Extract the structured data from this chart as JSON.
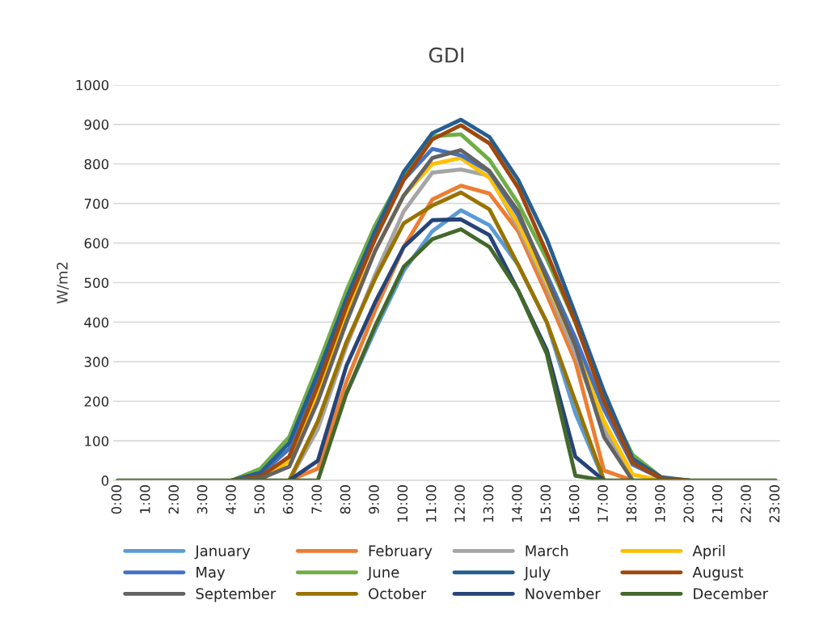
{
  "chart_data": {
    "type": "line",
    "title": "GDI",
    "ylabel": "W/m2",
    "categories": [
      "0:00",
      "1:00",
      "2:00",
      "3:00",
      "4:00",
      "5:00",
      "6:00",
      "7:00",
      "8:00",
      "9:00",
      "10:00",
      "11:00",
      "12:00",
      "13:00",
      "14:00",
      "15:00",
      "16:00",
      "17:00",
      "18:00",
      "19:00",
      "20:00",
      "21:00",
      "22:00",
      "23:00"
    ],
    "ylim": [
      0,
      1000
    ],
    "yticks": [
      0,
      100,
      200,
      300,
      400,
      500,
      600,
      700,
      800,
      900,
      1000
    ],
    "grid": "y",
    "legend": "bottom",
    "marker": "none",
    "line_style": "solid",
    "series": [
      {
        "name": "January",
        "color": "#5b9bd5",
        "values": [
          null,
          null,
          null,
          null,
          null,
          null,
          null,
          null,
          220,
          380,
          530,
          630,
          683,
          645,
          545,
          400,
          170,
          0,
          null,
          null,
          null,
          null,
          null,
          null
        ]
      },
      {
        "name": "February",
        "color": "#ed7d31",
        "values": [
          null,
          null,
          null,
          null,
          null,
          null,
          0,
          30,
          250,
          430,
          590,
          710,
          745,
          725,
          630,
          470,
          300,
          25,
          0,
          null,
          null,
          null,
          null,
          null
        ]
      },
      {
        "name": "March",
        "color": "#a5a5a5",
        "values": [
          null,
          null,
          null,
          null,
          null,
          null,
          0,
          130,
          340,
          520,
          680,
          778,
          786,
          770,
          640,
          490,
          320,
          130,
          0,
          null,
          null,
          null,
          null,
          null
        ]
      },
      {
        "name": "April",
        "color": "#ffc000",
        "values": [
          null,
          null,
          null,
          null,
          null,
          0,
          50,
          220,
          420,
          580,
          720,
          800,
          815,
          765,
          650,
          500,
          340,
          150,
          15,
          0,
          null,
          null,
          null,
          null
        ]
      },
      {
        "name": "May",
        "color": "#4472c4",
        "values": [
          null,
          null,
          null,
          null,
          0,
          15,
          80,
          250,
          450,
          620,
          760,
          838,
          822,
          780,
          670,
          520,
          360,
          180,
          40,
          5,
          null,
          null,
          null,
          null
        ]
      },
      {
        "name": "June",
        "color": "#70ad47",
        "values": [
          null,
          null,
          null,
          null,
          0,
          30,
          110,
          290,
          480,
          645,
          775,
          870,
          875,
          810,
          700,
          560,
          400,
          210,
          65,
          8,
          null,
          null,
          null,
          null
        ]
      },
      {
        "name": "July",
        "color": "#255e91",
        "values": [
          null,
          null,
          null,
          null,
          0,
          20,
          95,
          270,
          460,
          630,
          780,
          878,
          912,
          868,
          760,
          610,
          420,
          225,
          55,
          8,
          0,
          null,
          null,
          null
        ]
      },
      {
        "name": "August",
        "color": "#9e480e",
        "values": [
          null,
          null,
          null,
          null,
          0,
          10,
          60,
          240,
          440,
          610,
          760,
          862,
          898,
          852,
          740,
          575,
          400,
          200,
          45,
          5,
          0,
          null,
          null,
          null
        ]
      },
      {
        "name": "September",
        "color": "#636363",
        "values": [
          null,
          null,
          null,
          null,
          0,
          5,
          35,
          200,
          400,
          580,
          720,
          815,
          835,
          782,
          680,
          510,
          340,
          110,
          0,
          null,
          null,
          null,
          null,
          null
        ]
      },
      {
        "name": "October",
        "color": "#997300",
        "values": [
          null,
          null,
          null,
          null,
          null,
          null,
          0,
          150,
          350,
          510,
          650,
          695,
          728,
          685,
          545,
          400,
          200,
          0,
          null,
          null,
          null,
          null,
          null,
          null
        ]
      },
      {
        "name": "November",
        "color": "#264478",
        "values": [
          null,
          null,
          null,
          null,
          null,
          null,
          0,
          50,
          290,
          450,
          590,
          658,
          660,
          620,
          480,
          330,
          60,
          0,
          null,
          null,
          null,
          null,
          null,
          null
        ]
      },
      {
        "name": "December",
        "color": "#43682b",
        "values": [
          0,
          0,
          0,
          0,
          0,
          0,
          0,
          0,
          220,
          390,
          540,
          610,
          635,
          590,
          480,
          320,
          12,
          0,
          0,
          0,
          0,
          0,
          0,
          0
        ]
      }
    ]
  }
}
